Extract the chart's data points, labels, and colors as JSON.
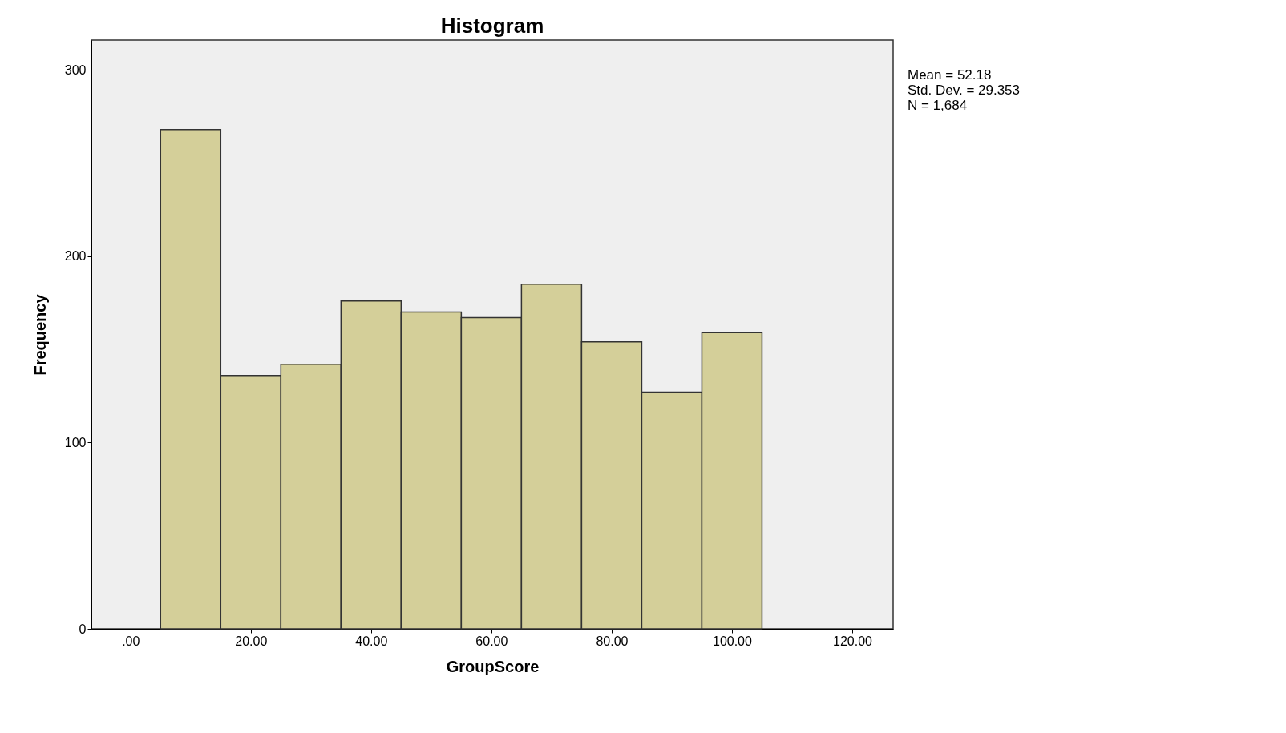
{
  "chart_data": {
    "type": "histogram",
    "title": "Histogram",
    "xlabel": "GroupScore",
    "ylabel": "Frequency",
    "bins": [
      5,
      15,
      25,
      35,
      45,
      55,
      65,
      75,
      85,
      95,
      105
    ],
    "values": [
      268,
      136,
      142,
      176,
      170,
      167,
      185,
      154,
      127,
      159
    ],
    "color": "#d4cf99",
    "xlim": [
      -6.5,
      126.8
    ],
    "xticks": [
      {
        "value": 0,
        "label": ".00"
      },
      {
        "value": 20,
        "label": "20.00"
      },
      {
        "value": 40,
        "label": "40.00"
      },
      {
        "value": 60,
        "label": "60.00"
      },
      {
        "value": 80,
        "label": "80.00"
      },
      {
        "value": 100,
        "label": "100.00"
      },
      {
        "value": 120,
        "label": "120.00"
      }
    ],
    "ylim": [
      0,
      316
    ],
    "yticks": [
      0,
      100,
      200,
      300
    ],
    "grid": false,
    "annotations": [
      "Mean = 52.18",
      "Std. Dev. = 29.353",
      "N = 1,684"
    ]
  }
}
